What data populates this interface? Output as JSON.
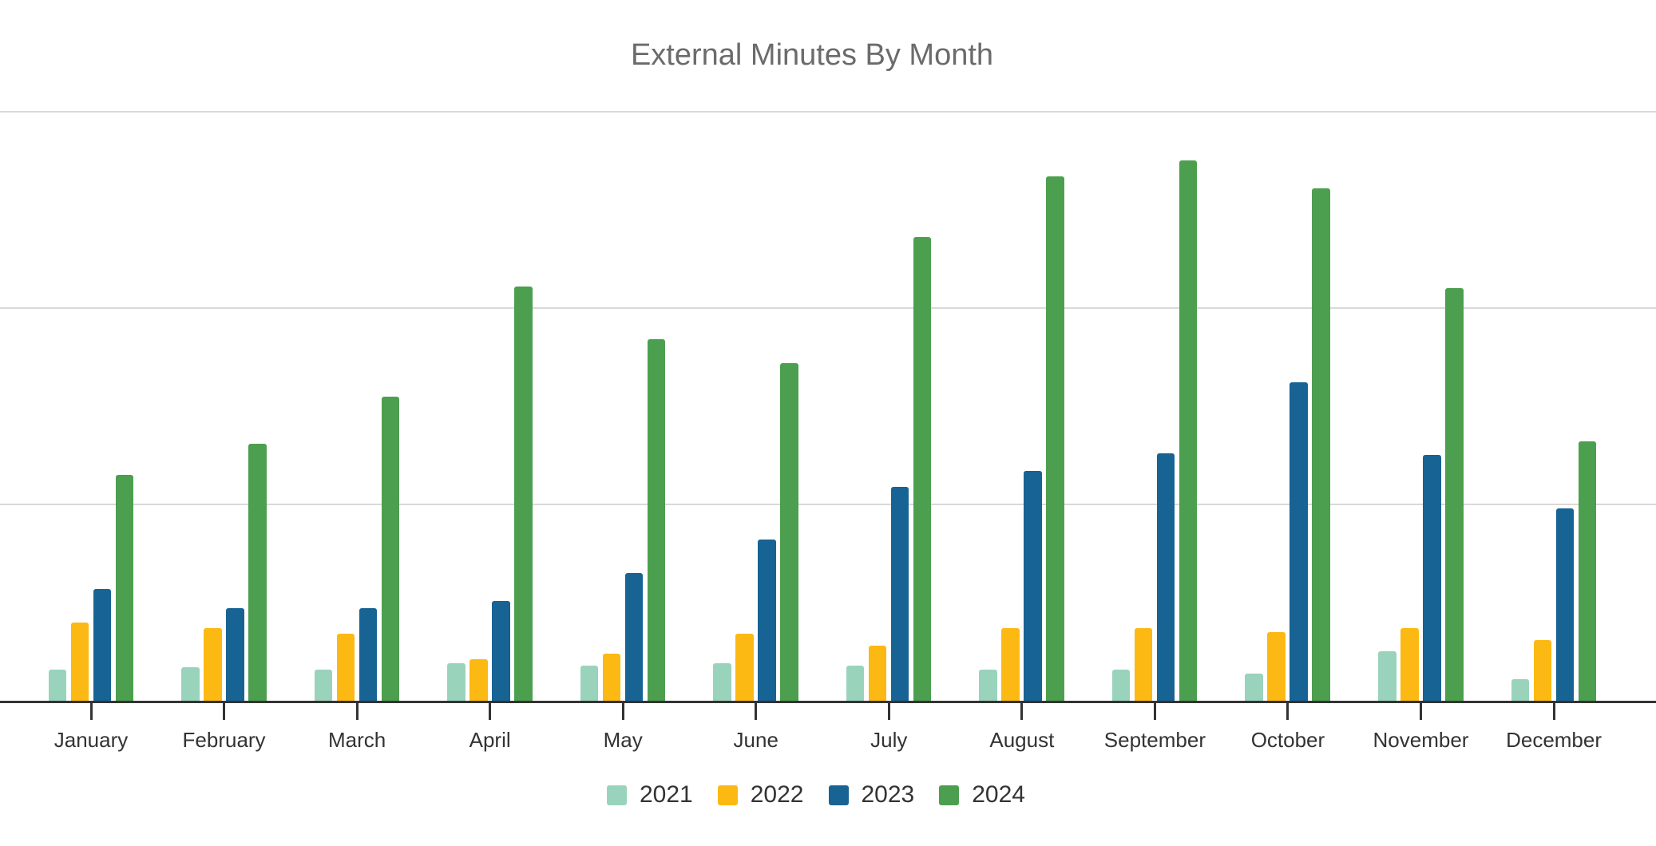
{
  "chart_data": {
    "type": "bar",
    "title": "External Minutes By Month",
    "xlabel": "",
    "ylabel": "",
    "categories": [
      "January",
      "February",
      "March",
      "April",
      "May",
      "June",
      "July",
      "August",
      "September",
      "October",
      "November",
      "December"
    ],
    "series": [
      {
        "name": "2021",
        "color": "#9ad3bc",
        "values": [
          0.16,
          0.17,
          0.16,
          0.19,
          0.18,
          0.19,
          0.18,
          0.16,
          0.16,
          0.14,
          0.25,
          0.11
        ]
      },
      {
        "name": "2022",
        "color": "#fcb913",
        "values": [
          0.4,
          0.37,
          0.34,
          0.21,
          0.24,
          0.34,
          0.28,
          0.37,
          0.37,
          0.35,
          0.37,
          0.31
        ]
      },
      {
        "name": "2023",
        "color": "#176394",
        "values": [
          0.57,
          0.47,
          0.47,
          0.51,
          0.65,
          0.82,
          1.09,
          1.17,
          1.26,
          1.62,
          1.25,
          0.98
        ]
      },
      {
        "name": "2024",
        "color": "#4c9f4e",
        "values": [
          1.15,
          1.31,
          1.55,
          2.11,
          1.84,
          1.72,
          2.36,
          2.67,
          2.75,
          2.61,
          2.1,
          1.32
        ]
      }
    ],
    "y_axis": {
      "tick_labels_visible": false,
      "gridline_values": [
        1,
        2,
        3
      ],
      "ylim": [
        0,
        3.3
      ],
      "unit_note": "No numeric y-axis labels are visible; values are estimated in gridline units (one gridline spacing = 1.0)."
    },
    "grid": true,
    "legend_position": "bottom-center"
  },
  "colors": {
    "title_text": "#6b6b6b",
    "axis_line": "#333333",
    "gridline": "#d9d9d9",
    "label_text": "#333333",
    "background": "#ffffff"
  }
}
